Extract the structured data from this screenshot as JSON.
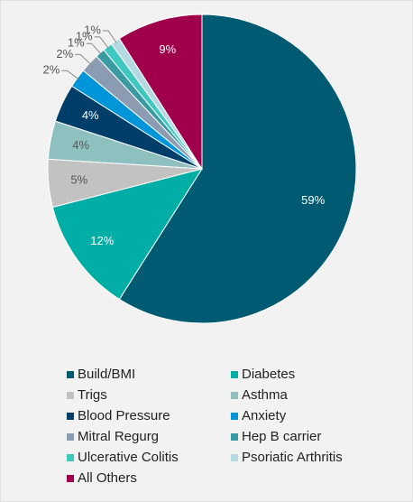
{
  "chart_data": {
    "type": "pie",
    "categories": [
      "Build/BMI",
      "Diabetes",
      "Trigs",
      "Asthma",
      "Blood Pressure",
      "Anxiety",
      "Mitral Regurg",
      "Hep B carrier",
      "Ulcerative Colitis",
      "Psoriatic Arthritis",
      "All Others"
    ],
    "values": [
      59,
      12,
      5,
      4,
      4,
      2,
      2,
      1,
      1,
      1,
      9
    ],
    "value_labels": [
      "59%",
      "12%",
      "5%",
      "4%",
      "4%",
      "2%",
      "2%",
      "1%",
      "1%",
      "1%",
      "9%"
    ],
    "colors": [
      "#005b72",
      "#00aea6",
      "#c2c2c2",
      "#8ec0c0",
      "#003e6a",
      "#0095d8",
      "#8b9bb2",
      "#3a9aa2",
      "#3fc8c0",
      "#b3d9e2",
      "#a0004b"
    ],
    "legend": "bottom"
  }
}
